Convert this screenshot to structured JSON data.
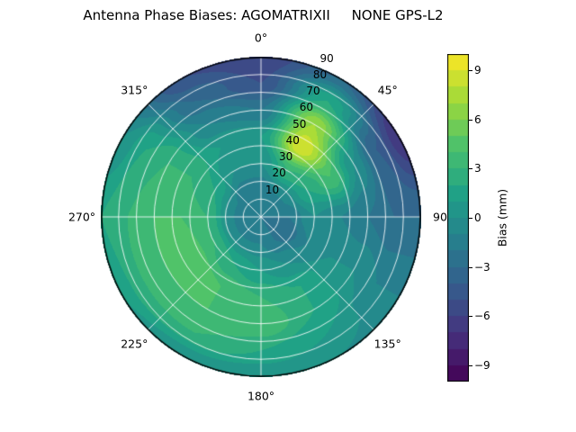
{
  "title": "Antenna Phase Biases: AGOMATRIXII     NONE GPS-L2",
  "chart_data": {
    "type": "heatmap",
    "projection": "polar",
    "title": "Antenna Phase Biases: AGOMATRIXII     NONE GPS-L2",
    "azimuth_tick_labels": [
      "0°",
      "45°",
      "90",
      "135°",
      "180°",
      "225°",
      "270°",
      "315°"
    ],
    "radial_ticks": [
      {
        "value": 10,
        "label": "10"
      },
      {
        "value": 20,
        "label": "20"
      },
      {
        "value": 30,
        "label": "30"
      },
      {
        "value": 40,
        "label": "40"
      },
      {
        "value": 50,
        "label": "50"
      },
      {
        "value": 60,
        "label": "60"
      },
      {
        "value": 70,
        "label": "70"
      },
      {
        "value": 80,
        "label": "80"
      },
      {
        "value": 90,
        "label": "90"
      }
    ],
    "radial_label_azimuth_deg": 22.5,
    "radial_range": [
      0,
      90
    ],
    "grid": true,
    "grid_color": "#ffffff",
    "outline_color": "#000000",
    "background_color": "#ffffff",
    "levels_step": 1,
    "colorbar": {
      "label": "Bias (mm)",
      "position": "right",
      "vmin": -10,
      "vmax": 10,
      "ticks": [
        {
          "value": 9,
          "label": "9"
        },
        {
          "value": 6,
          "label": "6"
        },
        {
          "value": 3,
          "label": "3"
        },
        {
          "value": 0,
          "label": "0"
        },
        {
          "value": -3,
          "label": "−3"
        },
        {
          "value": -6,
          "label": "−6"
        },
        {
          "value": -9,
          "label": "−9"
        }
      ],
      "colormap": "viridis",
      "colormap_stops": [
        "#440154",
        "#46327e",
        "#365c8d",
        "#277f8e",
        "#1fa187",
        "#4ac16d",
        "#9fda3a",
        "#fde725"
      ]
    },
    "surface": {
      "azimuth_deg": [
        0,
        30,
        60,
        90,
        120,
        150,
        180,
        210,
        240,
        270,
        300,
        330
      ],
      "zenith_deg": [
        0,
        15,
        30,
        45,
        60,
        75,
        90
      ],
      "bias_mm": [
        [
          -2,
          -2,
          -2,
          -2,
          -2,
          -2,
          -2,
          -2,
          -2,
          -2,
          -2,
          -2
        ],
        [
          -2,
          -1,
          -1,
          -2,
          -3,
          -2,
          -1,
          -1,
          -1,
          -1,
          -1,
          -2
        ],
        [
          0,
          3,
          2,
          0,
          -1,
          0,
          1,
          2,
          3,
          3,
          2,
          0
        ],
        [
          1,
          9,
          4,
          -1,
          0,
          2,
          3,
          4,
          5,
          4,
          3,
          1
        ],
        [
          -2,
          7,
          0,
          -2,
          0,
          2,
          4,
          4,
          4,
          4,
          3,
          -1
        ],
        [
          -5,
          2,
          -4,
          -3,
          -1,
          1,
          2,
          3,
          3,
          3,
          2,
          -3
        ],
        [
          -6,
          -3,
          -7,
          -3,
          -1,
          0,
          0,
          0,
          1,
          2,
          0,
          -5
        ]
      ]
    }
  }
}
